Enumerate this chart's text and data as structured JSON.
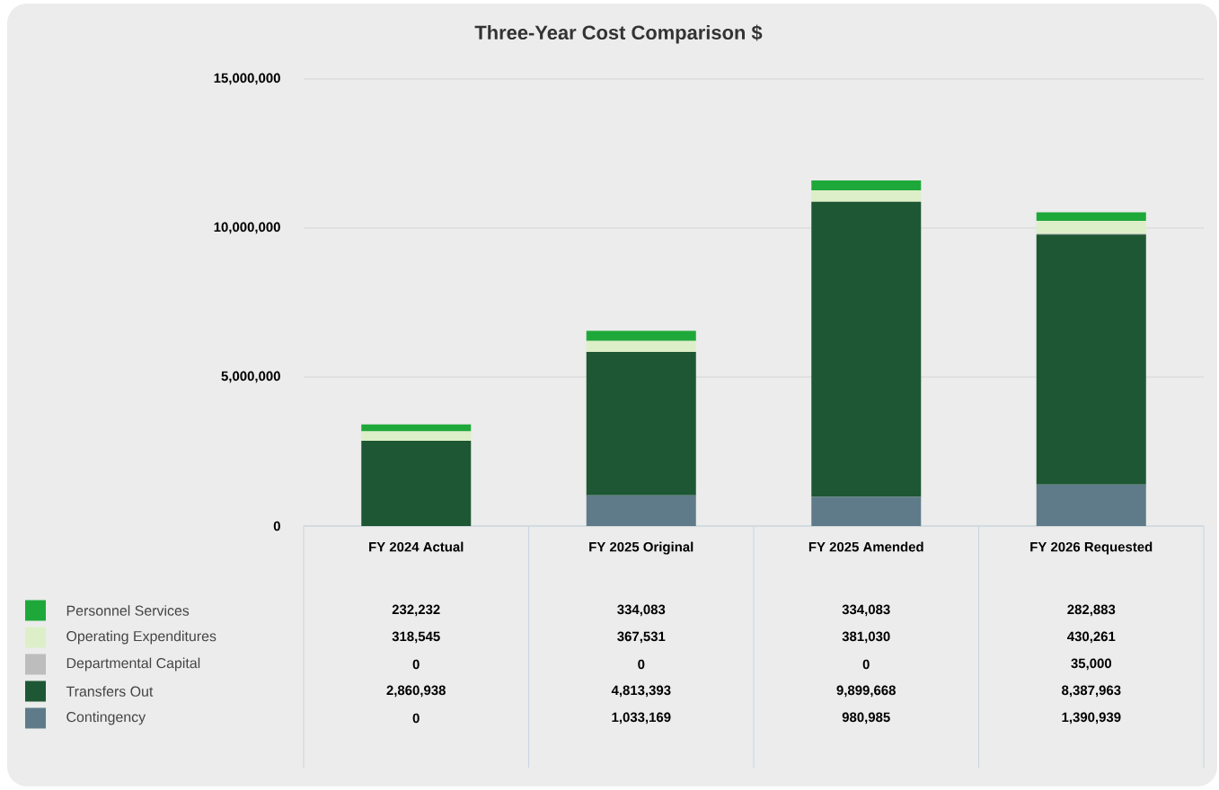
{
  "chart_data": {
    "type": "bar",
    "stacked": true,
    "title": "Three-Year Cost Comparison $",
    "categories": [
      "FY 2024 Actual",
      "FY 2025 Original",
      "FY 2025 Amended",
      "FY 2026 Requested"
    ],
    "series": [
      {
        "name": "Contingency",
        "color": "#5f7b8a",
        "values": [
          0,
          1033169,
          980985,
          1390939
        ],
        "value_labels": [
          "0",
          "1,033,169",
          "980,985",
          "1,390,939"
        ]
      },
      {
        "name": "Transfers Out",
        "color": "#1e5734",
        "values": [
          2860938,
          4813393,
          9899668,
          8387963
        ],
        "value_labels": [
          "2,860,938",
          "4,813,393",
          "9,899,668",
          "8,387,963"
        ]
      },
      {
        "name": "Departmental Capital",
        "color": "#bdbdbd",
        "values": [
          0,
          0,
          0,
          35000
        ],
        "value_labels": [
          "0",
          "0",
          "0",
          "35,000"
        ]
      },
      {
        "name": "Operating Expenditures",
        "color": "#ddefc8",
        "values": [
          318545,
          367531,
          381030,
          430261
        ],
        "value_labels": [
          "318,545",
          "367,531",
          "381,030",
          "430,261"
        ]
      },
      {
        "name": "Personnel Services",
        "color": "#1fa83a",
        "values": [
          232232,
          334083,
          334083,
          282883
        ],
        "value_labels": [
          "232,232",
          "334,083",
          "334,083",
          "282,883"
        ]
      }
    ],
    "ylim": [
      0,
      15000000
    ],
    "yticks": [
      0,
      {
        "value": 5000000,
        "label": "5,000,000"
      },
      {
        "value": 10000000,
        "label": "10,000,000"
      },
      {
        "value": 15000000,
        "label": "15,000,000"
      }
    ],
    "grid": "y",
    "legend": "bottom left"
  }
}
